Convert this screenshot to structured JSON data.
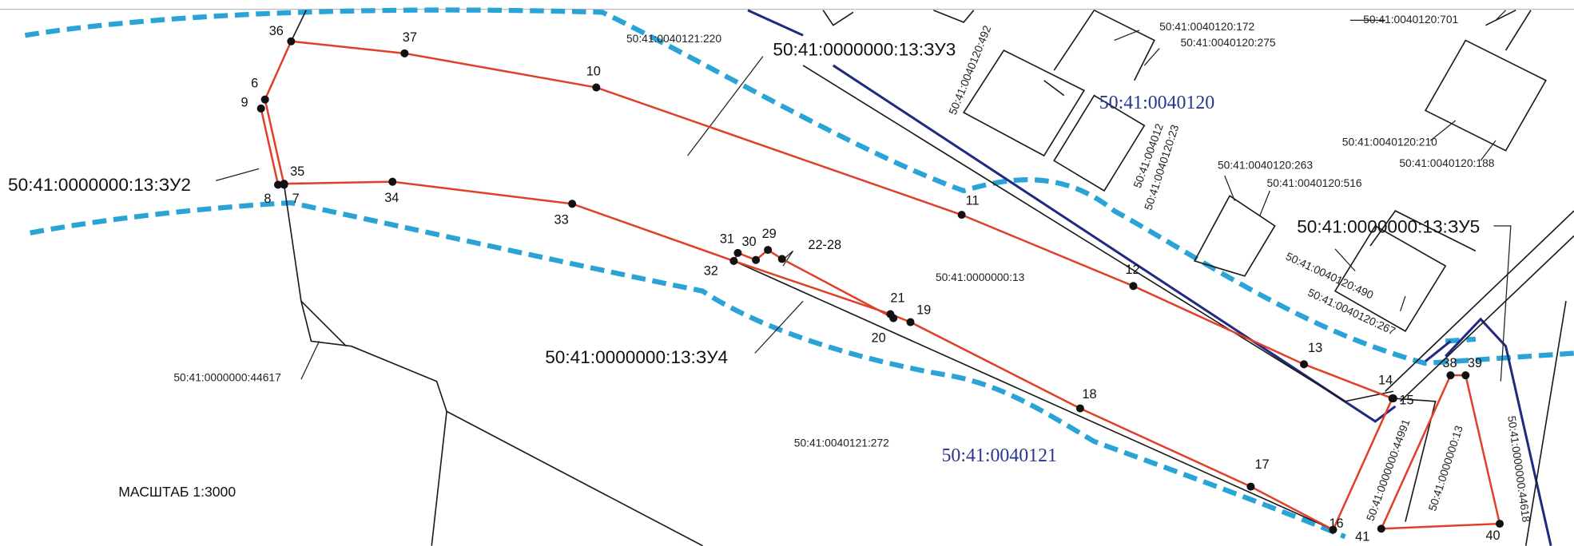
{
  "map": {
    "parcel_labels": [
      "50:41:0000000:13:ЗУ3",
      "50:41:0000000:13:ЗУ2",
      "50:41:0000000:13:ЗУ4",
      "50:41:0000000:13:ЗУ5"
    ],
    "block_labels": [
      "50:41:0040120",
      "50:41:0040121"
    ],
    "cadastral_labels": [
      "50:41:0040121:220",
      "50:41:0040120:172",
      "50:41:0040120:275",
      "50:41:0040120:701",
      "50:41:0040120:492",
      "50:41:0040120:210",
      "50:41:0040120:188",
      "50:41:0040120:263",
      "50:41:0040120:516",
      "50:41:0000000:13",
      "50:41:0040120:490",
      "50:41:0040120:267",
      "50:41:0000000:44617",
      "50:41:0040121:272",
      "50:41:0000000:44991",
      "50:41:0000000:13",
      "50:41:0000000:44618",
      "50:41:004012",
      "50:41:0040120:23"
    ],
    "points": [
      "36",
      "37",
      "10",
      "11",
      "12",
      "13",
      "14",
      "15",
      "16",
      "41",
      "40",
      "39",
      "38",
      "6",
      "9",
      "8",
      "7",
      "35",
      "34",
      "33",
      "32",
      "31",
      "30",
      "29",
      "22-28",
      "21",
      "19",
      "20",
      "18",
      "17"
    ],
    "scale": "МАСШТАБ 1:3000"
  }
}
